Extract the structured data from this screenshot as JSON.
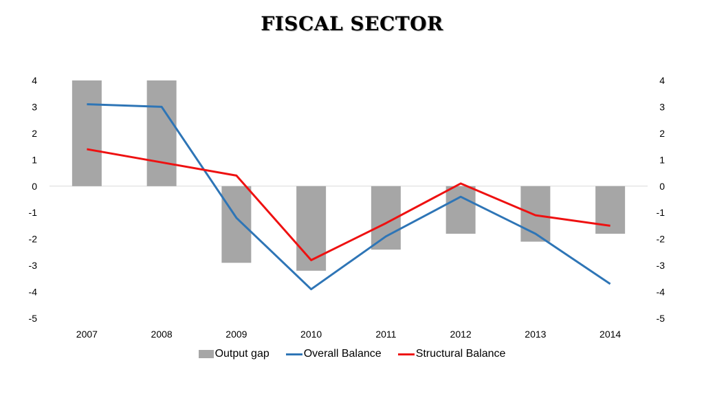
{
  "chart_data": {
    "type": "bar",
    "title": "FISCAL SECTOR",
    "categories": [
      "2007",
      "2008",
      "2009",
      "2010",
      "2011",
      "2012",
      "2013",
      "2014"
    ],
    "series": [
      {
        "name": "Output gap",
        "kind": "bar",
        "color": "#a6a6a6",
        "values": [
          4.0,
          4.0,
          -2.9,
          -3.2,
          -2.4,
          -1.8,
          -2.1,
          -1.8
        ]
      },
      {
        "name": "Overall Balance",
        "kind": "line",
        "color": "#2e75b6",
        "values": [
          3.1,
          3.0,
          -1.2,
          -3.9,
          -1.9,
          -0.4,
          -1.8,
          -3.7
        ]
      },
      {
        "name": "Structural Balance",
        "kind": "line",
        "color": "#ee1111",
        "values": [
          1.4,
          0.9,
          0.4,
          -2.8,
          -1.4,
          0.1,
          -1.1,
          -1.5
        ]
      }
    ],
    "ylim": [
      -5,
      4
    ],
    "yticks": [
      "4",
      "3",
      "2",
      "1",
      "0",
      "-1",
      "-2",
      "-3",
      "-4",
      "-5"
    ],
    "secondary_yticks": [
      "4",
      "3",
      "2",
      "1",
      "0",
      "-1",
      "-2",
      "-3",
      "-4",
      "-5"
    ],
    "xlabel": "",
    "ylabel": "",
    "grid": false,
    "legend_position": "bottom"
  }
}
